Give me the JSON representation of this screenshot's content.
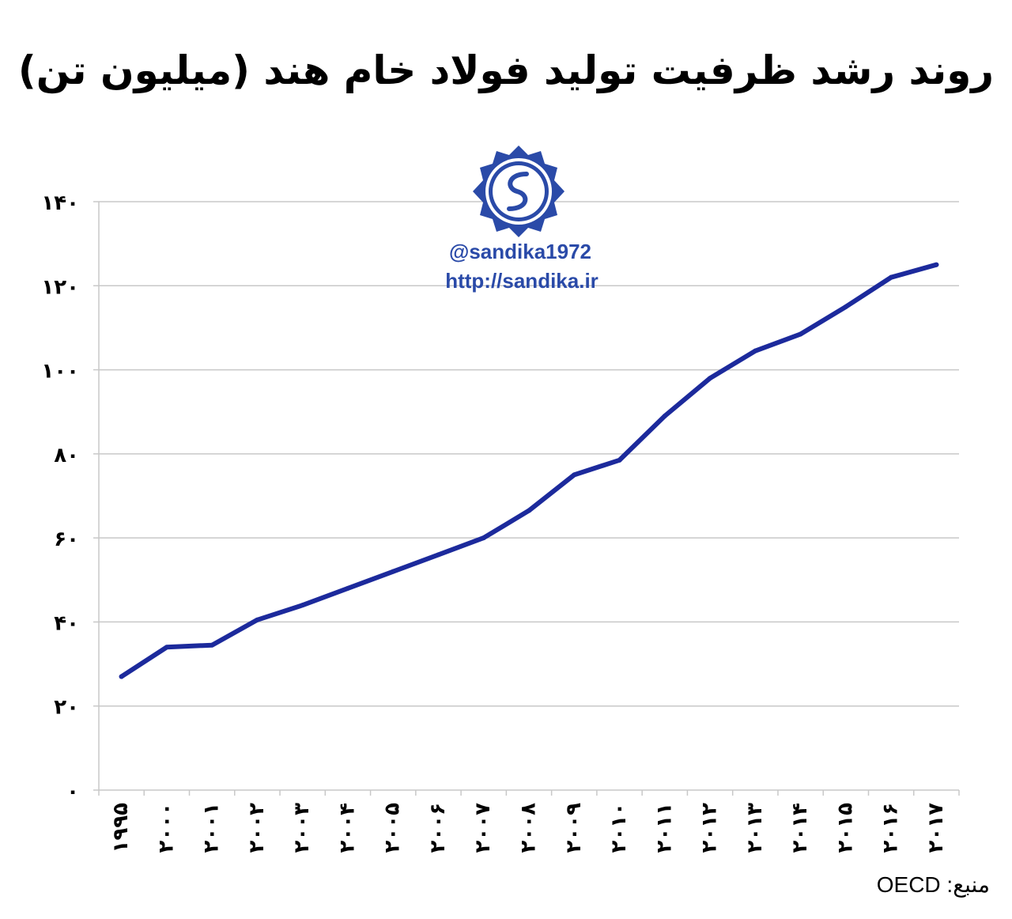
{
  "chart_data": {
    "type": "line",
    "title": "روند رشد ظرفیت تولید فولاد خام هند (میلیون تن)",
    "xlabel": "",
    "ylabel": "",
    "ylim": [
      0,
      140
    ],
    "grid": true,
    "y_ticks": [
      "۰",
      "۲۰",
      "۴۰",
      "۶۰",
      "۸۰",
      "۱۰۰",
      "۱۲۰",
      "۱۴۰"
    ],
    "y_tick_values": [
      0,
      20,
      40,
      60,
      80,
      100,
      120,
      140
    ],
    "categories": [
      "۱۹۹۵",
      "۲۰۰۰",
      "۲۰۰۱",
      "۲۰۰۲",
      "۲۰۰۳",
      "۲۰۰۴",
      "۲۰۰۵",
      "۲۰۰۶",
      "۲۰۰۷",
      "۲۰۰۸",
      "۲۰۰۹",
      "۲۰۱۰",
      "۲۰۱۱",
      "۲۰۱۲",
      "۲۰۱۳",
      "۲۰۱۴",
      "۲۰۱۵",
      "۲۰۱۶",
      "۲۰۱۷"
    ],
    "series": [
      {
        "values": [
          27,
          34,
          34.5,
          40.5,
          44,
          48,
          52,
          56,
          60,
          66.5,
          75,
          78.5,
          89,
          98,
          104.5,
          108.5,
          115,
          122,
          125
        ]
      }
    ]
  },
  "colors": {
    "line": "#1c2a9c",
    "grid": "#c8c8c8",
    "watermark": "#2a4aa8"
  },
  "watermark": {
    "logo_icon": "sandika-gear-logo-icon",
    "handle": "@sandika1972",
    "url": "http://sandika.ir"
  },
  "source_note": "منبع: OECD"
}
